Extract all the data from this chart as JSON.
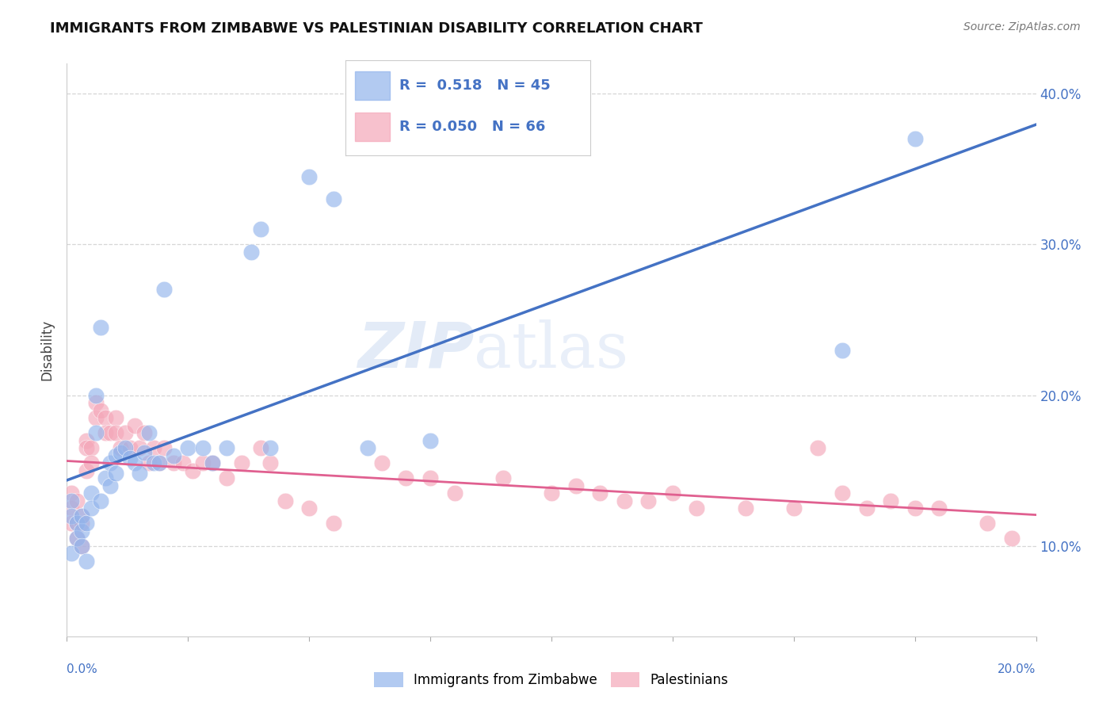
{
  "title": "IMMIGRANTS FROM ZIMBABWE VS PALESTINIAN DISABILITY CORRELATION CHART",
  "source": "Source: ZipAtlas.com",
  "ylabel": "Disability",
  "xlim": [
    0.0,
    0.2
  ],
  "ylim": [
    0.04,
    0.42
  ],
  "yticks": [
    0.1,
    0.2,
    0.3,
    0.4
  ],
  "ytick_labels": [
    "10.0%",
    "20.0%",
    "30.0%",
    "40.0%"
  ],
  "xticks": [
    0.0,
    0.025,
    0.05,
    0.075,
    0.1,
    0.125,
    0.15,
    0.175,
    0.2
  ],
  "legend_R1": "0.518",
  "legend_N1": "45",
  "legend_R2": "0.050",
  "legend_N2": "66",
  "blue_color": "#92b4ec",
  "pink_color": "#f4a7b9",
  "blue_line_color": "#4472c4",
  "pink_line_color": "#e06090",
  "watermark": "ZIPatlas",
  "blue_scatter_x": [
    0.001,
    0.001,
    0.001,
    0.002,
    0.002,
    0.003,
    0.003,
    0.003,
    0.004,
    0.004,
    0.005,
    0.005,
    0.006,
    0.006,
    0.007,
    0.007,
    0.008,
    0.009,
    0.009,
    0.01,
    0.01,
    0.011,
    0.012,
    0.013,
    0.014,
    0.015,
    0.016,
    0.017,
    0.018,
    0.019,
    0.02,
    0.022,
    0.025,
    0.028,
    0.03,
    0.033,
    0.038,
    0.04,
    0.042,
    0.05,
    0.055,
    0.062,
    0.075,
    0.16,
    0.175
  ],
  "blue_scatter_y": [
    0.13,
    0.12,
    0.095,
    0.115,
    0.105,
    0.12,
    0.11,
    0.1,
    0.115,
    0.09,
    0.135,
    0.125,
    0.2,
    0.175,
    0.13,
    0.245,
    0.145,
    0.155,
    0.14,
    0.16,
    0.148,
    0.162,
    0.165,
    0.158,
    0.155,
    0.148,
    0.162,
    0.175,
    0.155,
    0.155,
    0.27,
    0.16,
    0.165,
    0.165,
    0.155,
    0.165,
    0.295,
    0.31,
    0.165,
    0.345,
    0.33,
    0.165,
    0.17,
    0.23,
    0.37
  ],
  "pink_scatter_x": [
    0.001,
    0.001,
    0.001,
    0.002,
    0.002,
    0.002,
    0.003,
    0.003,
    0.003,
    0.004,
    0.004,
    0.004,
    0.005,
    0.005,
    0.006,
    0.006,
    0.007,
    0.008,
    0.008,
    0.009,
    0.01,
    0.01,
    0.011,
    0.012,
    0.013,
    0.014,
    0.015,
    0.016,
    0.017,
    0.018,
    0.019,
    0.02,
    0.022,
    0.024,
    0.026,
    0.028,
    0.03,
    0.033,
    0.036,
    0.04,
    0.042,
    0.045,
    0.05,
    0.055,
    0.065,
    0.07,
    0.075,
    0.08,
    0.09,
    0.1,
    0.105,
    0.11,
    0.115,
    0.12,
    0.125,
    0.13,
    0.14,
    0.15,
    0.155,
    0.16,
    0.165,
    0.17,
    0.175,
    0.18,
    0.19,
    0.195
  ],
  "pink_scatter_y": [
    0.135,
    0.125,
    0.115,
    0.13,
    0.115,
    0.105,
    0.12,
    0.115,
    0.1,
    0.17,
    0.165,
    0.15,
    0.165,
    0.155,
    0.195,
    0.185,
    0.19,
    0.185,
    0.175,
    0.175,
    0.185,
    0.175,
    0.165,
    0.175,
    0.165,
    0.18,
    0.165,
    0.175,
    0.155,
    0.165,
    0.155,
    0.165,
    0.155,
    0.155,
    0.15,
    0.155,
    0.155,
    0.145,
    0.155,
    0.165,
    0.155,
    0.13,
    0.125,
    0.115,
    0.155,
    0.145,
    0.145,
    0.135,
    0.145,
    0.135,
    0.14,
    0.135,
    0.13,
    0.13,
    0.135,
    0.125,
    0.125,
    0.125,
    0.165,
    0.135,
    0.125,
    0.13,
    0.125,
    0.125,
    0.115,
    0.105
  ]
}
